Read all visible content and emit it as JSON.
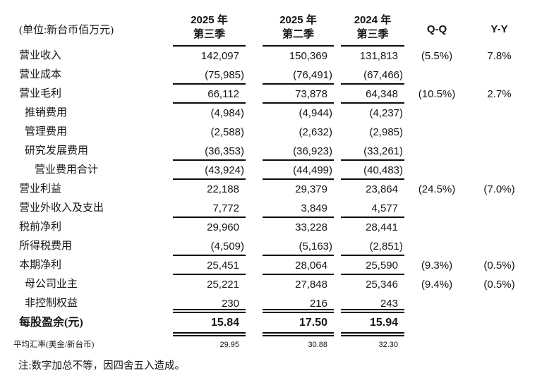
{
  "unit_label": "(单位:新台币佰万元)",
  "header": {
    "col1": {
      "line1": "2025 年",
      "line2": "第三季"
    },
    "col2": {
      "line1": "2025 年",
      "line2": "第二季"
    },
    "col3": {
      "line1": "2024 年",
      "line2": "第三季"
    },
    "qq": "Q-Q",
    "yy": "Y-Y"
  },
  "rows": [
    {
      "label": "营业收入",
      "v1": "142,097",
      "v2": "150,369",
      "v3": "131,813",
      "qq": "(5.5%)",
      "yy": "7.8%"
    },
    {
      "label": "营业成本",
      "v1": "(75,985)",
      "v2": "(76,491)",
      "v3": "(67,466)"
    },
    {
      "label": "营业毛利",
      "v1": "66,112",
      "v2": "73,878",
      "v3": "64,348",
      "qq": "(10.5%)",
      "yy": "2.7%"
    },
    {
      "label": "推销费用",
      "v1": "(4,984)",
      "v2": "(4,944)",
      "v3": "(4,237)"
    },
    {
      "label": "管理费用",
      "v1": "(2,588)",
      "v2": "(2,632)",
      "v3": "(2,985)"
    },
    {
      "label": "研究发展费用",
      "v1": "(36,353)",
      "v2": "(36,923)",
      "v3": "(33,261)"
    },
    {
      "label": "营业费用合计",
      "v1": "(43,924)",
      "v2": "(44,499)",
      "v3": "(40,483)"
    },
    {
      "label": "营业利益",
      "v1": "22,188",
      "v2": "29,379",
      "v3": "23,864",
      "qq": "(24.5%)",
      "yy": "(7.0%)"
    },
    {
      "label": "营业外收入及支出",
      "v1": "7,772",
      "v2": "3,849",
      "v3": "4,577"
    },
    {
      "label": "税前净利",
      "v1": "29,960",
      "v2": "33,228",
      "v3": "28,441"
    },
    {
      "label": "所得税费用",
      "v1": "(4,509)",
      "v2": "(5,163)",
      "v3": "(2,851)"
    },
    {
      "label": "本期净利",
      "v1": "25,451",
      "v2": "28,064",
      "v3": "25,590",
      "qq": "(9.3%)",
      "yy": "(0.5%)"
    },
    {
      "label": "母公司业主",
      "v1": "25,221",
      "v2": "27,848",
      "v3": "25,346",
      "qq": "(9.4%)",
      "yy": "(0.5%)"
    },
    {
      "label": "非控制权益",
      "v1": "230",
      "v2": "216",
      "v3": "243"
    },
    {
      "label": "每股盈余(元)",
      "v1": "15.84",
      "v2": "17.50",
      "v3": "15.94"
    },
    {
      "label": "平均汇率(美金/新台币)",
      "v1": "29.95",
      "v2": "30.88",
      "v3": "32.30"
    }
  ],
  "footnote": "注:数字加总不等，因四舍五入造成。"
}
